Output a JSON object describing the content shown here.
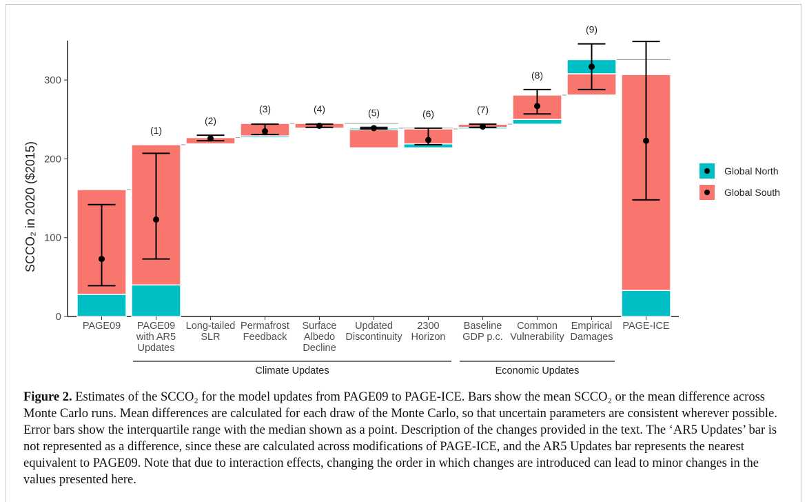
{
  "chart_data": {
    "type": "waterfall",
    "ylabel": "SCCO₂ in 2020 ($2015)",
    "categories": [
      "PAGE09",
      "PAGE09\nwith AR5\nUpdates",
      "Long-tailed\nSLR",
      "Permafrost\nFeedback",
      "Surface\nAlbedo\nDecline",
      "Updated\nDiscontinuity",
      "2300\nHorizon",
      "Baseline\nGDP p.c.",
      "Common\nVulnerability",
      "Empirical\nDamages",
      "PAGE-ICE"
    ],
    "step_labels": [
      null,
      "(1)",
      "(2)",
      "(3)",
      "(4)",
      "(5)",
      "(6)",
      "(7)",
      "(8)",
      "(9)",
      null
    ],
    "groups": [
      "Climate Updates",
      "Economic Updates"
    ],
    "series": [
      {
        "name": "Global South",
        "color": "#F8766D",
        "low": [
          28,
          40,
          219,
          229,
          239,
          214,
          219,
          240,
          250,
          281,
          33
        ],
        "high": [
          161,
          218,
          227,
          245,
          245,
          237,
          238,
          244,
          281,
          308,
          307
        ]
      },
      {
        "name": "Global North",
        "color": "#00BFC4",
        "low": [
          0,
          0,
          218,
          227,
          null,
          237,
          214,
          238,
          244,
          308,
          0
        ],
        "high": [
          28,
          40,
          219,
          229,
          null,
          239,
          219,
          240,
          250,
          326,
          33
        ]
      }
    ],
    "median": [
      73,
      123,
      226,
      235,
      242,
      239,
      224,
      241,
      267,
      317,
      223
    ],
    "iqr_low": [
      39,
      73,
      223,
      231,
      240,
      238,
      218,
      240,
      257,
      288,
      148
    ],
    "iqr_high": [
      142,
      207,
      230,
      244,
      244,
      240,
      239,
      244,
      288,
      346,
      349
    ],
    "error_color": "#000000",
    "ylim": [
      0,
      350
    ],
    "yticks": [
      0,
      100,
      200,
      300
    ]
  },
  "caption": {
    "label": "Figure 2.",
    "text": "Estimates of the SCCO₂ for the model updates from PAGE09 to PAGE-ICE. Bars show the mean SCCO₂ or the mean difference across Monte Carlo runs. Mean differences are calculated for each draw of the Monte Carlo, so that uncertain parameters are consistent wherever possible. Error bars show the interquartile range with the median shown as a point. Description of the changes provided in the text. The ‘AR5 Updates’ bar is not represented as a difference, since these are calculated across modifications of PAGE-ICE, and the AR5 Updates bar represents the nearest equivalent to PAGE09. Note that due to interaction effects, changing the order in which changes are introduced can lead to minor changes in the values presented here."
  }
}
